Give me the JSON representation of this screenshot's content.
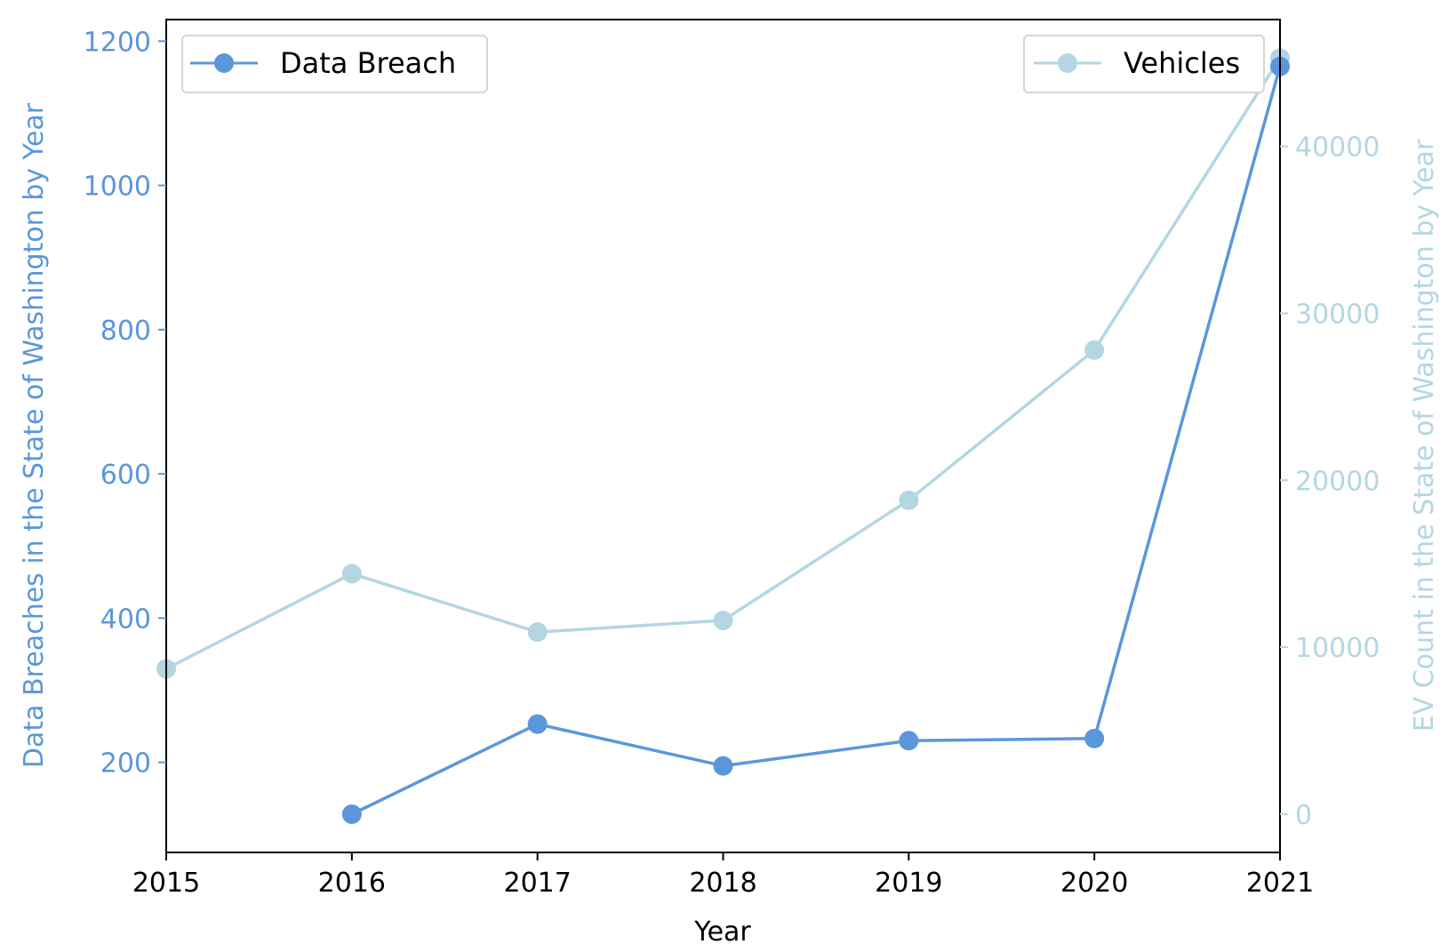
{
  "chart_data": {
    "type": "line",
    "title": "",
    "xlabel": "Year",
    "x": [
      2015,
      2016,
      2017,
      2018,
      2019,
      2020,
      2021
    ],
    "xlim": [
      2015,
      2021
    ],
    "x_ticks": [
      "2015",
      "2016",
      "2017",
      "2018",
      "2019",
      "2020",
      "2021"
    ],
    "left_axis": {
      "label": "Data Breaches in the State of Washington by Year",
      "ylim": [
        75,
        1230
      ],
      "ticks": [
        "200",
        "400",
        "600",
        "800",
        "1000",
        "1200"
      ],
      "color": "#5b96db"
    },
    "right_axis": {
      "label": "EV Count in the State of Washington by Year",
      "ylim": [
        -2300,
        47600
      ],
      "ticks": [
        "0",
        "10000",
        "20000",
        "30000",
        "40000"
      ],
      "color": "#b4d6e2"
    },
    "series": [
      {
        "name": "Data Breach",
        "axis": "left",
        "color": "#5b96db",
        "legend_position": "upper-left",
        "x": [
          2016,
          2017,
          2018,
          2019,
          2020,
          2021
        ],
        "values": [
          128,
          253,
          195,
          230,
          233,
          1165
        ]
      },
      {
        "name": "Vehicles",
        "axis": "right",
        "color": "#b4d6e2",
        "legend_position": "upper-right",
        "x": [
          2015,
          2016,
          2017,
          2018,
          2019,
          2020,
          2021
        ],
        "values": [
          8700,
          14400,
          10900,
          11600,
          18800,
          27800,
          45300
        ]
      }
    ],
    "grid": false
  }
}
